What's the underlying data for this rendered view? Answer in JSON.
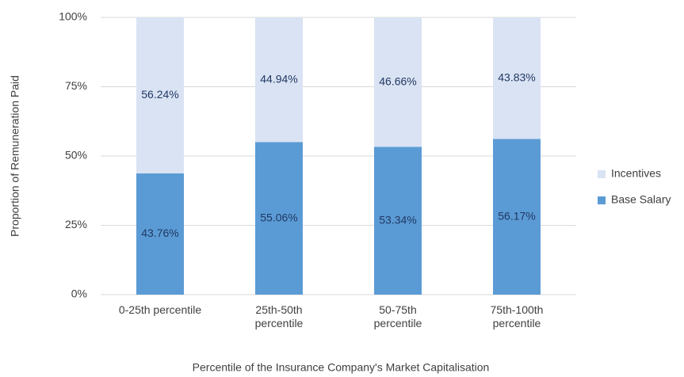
{
  "chart_data": {
    "type": "stacked_bar",
    "x_label": "Percentile of the Insurance Company's Market Capitalisation",
    "y_label": "Proportion of Remuneration Paid",
    "categories": [
      "0-25th percentile",
      "25th-50th\npercentile",
      "50-75th\npercentile",
      "75th-100th\npercentile"
    ],
    "series": [
      {
        "name": "Base Salary",
        "color": "#5b9bd5",
        "values": [
          43.76,
          55.06,
          53.34,
          56.17
        ],
        "value_labels": [
          "43.76%",
          "55.06%",
          "53.34%",
          "56.17%"
        ]
      },
      {
        "name": "Incentives",
        "color": "#dae3f3",
        "values": [
          56.24,
          44.94,
          46.66,
          43.83
        ],
        "value_labels": [
          "56.24%",
          "44.94%",
          "46.66%",
          "43.83%"
        ]
      }
    ],
    "ylim": [
      0,
      100
    ],
    "yticks": [
      {
        "value": 0,
        "label": "0%"
      },
      {
        "value": 25,
        "label": "25%"
      },
      {
        "value": 50,
        "label": "50%"
      },
      {
        "value": 75,
        "label": "75%"
      },
      {
        "value": 100,
        "label": "100%"
      }
    ],
    "grid": true,
    "legend": "right"
  }
}
